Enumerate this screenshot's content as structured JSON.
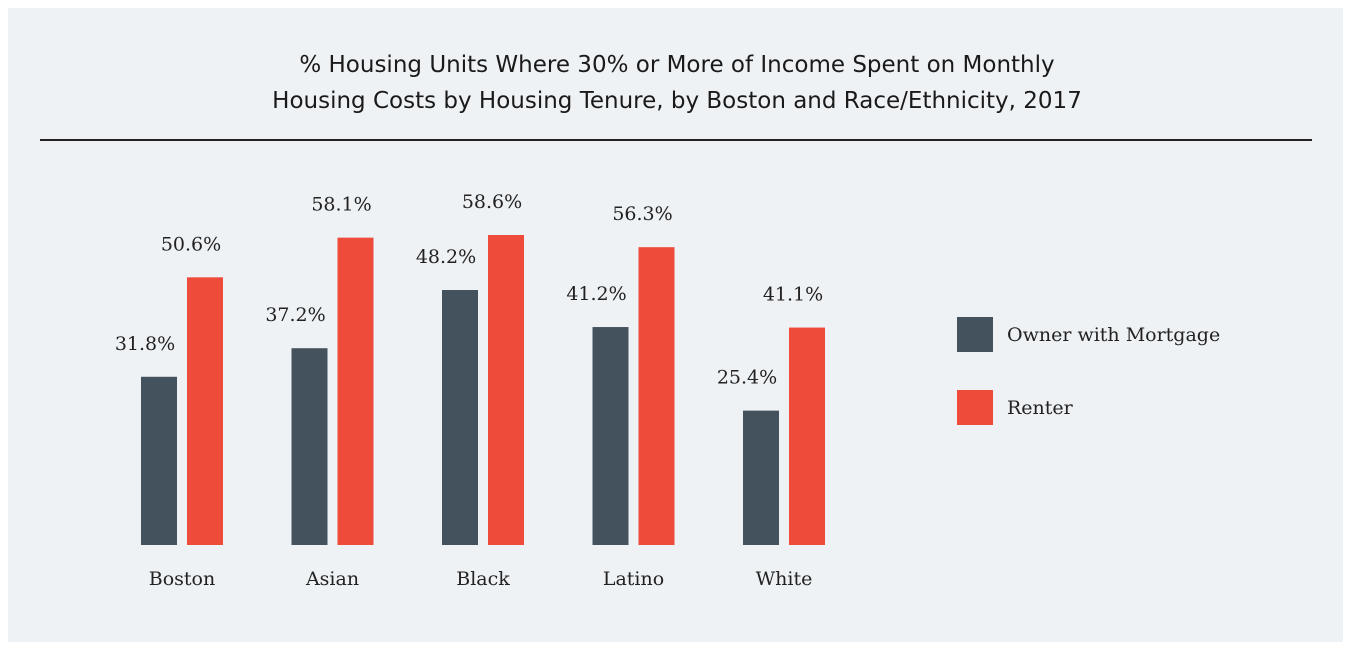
{
  "chart_data": {
    "type": "bar",
    "title": [
      "% Housing Units Where 30% or More of Income Spent on Monthly",
      "Housing Costs by Housing Tenure, by Boston and Race/Ethnicity, 2017"
    ],
    "categories": [
      "Boston",
      "Asian",
      "Black",
      "Latino",
      "White"
    ],
    "series": [
      {
        "name": "Owner with Mortgage",
        "color": "#44525e",
        "values": [
          31.8,
          37.2,
          48.2,
          41.2,
          25.4
        ],
        "value_labels": [
          "31.8%",
          "37.2%",
          "48.2%",
          "41.2%",
          "25.4%"
        ]
      },
      {
        "name": "Renter",
        "color": "#ee4b3b",
        "values": [
          50.6,
          58.1,
          58.6,
          56.3,
          41.1
        ],
        "value_labels": [
          "50.6%",
          "58.1%",
          "58.6%",
          "56.3%",
          "41.1%"
        ]
      }
    ],
    "legend": "right"
  }
}
